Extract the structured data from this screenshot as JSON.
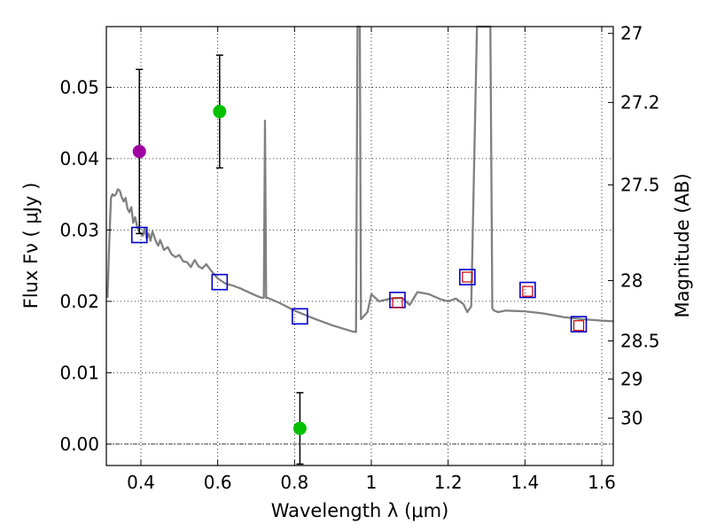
{
  "chart_data": {
    "type": "scatter",
    "title": "",
    "xlabel": "Wavelength  λ (μm)",
    "ylabel": "Flux  Fν  ( μJy )",
    "y2label": "Magnitude (AB)",
    "xlim": [
      0.31,
      1.63
    ],
    "ylim": [
      -0.003,
      0.0585
    ],
    "grid": true,
    "legend": "none",
    "x_ticks": [
      "0.4",
      "0.6",
      "0.8",
      "1",
      "1.2",
      "1.4",
      "1.6"
    ],
    "y_ticks": [
      "0.00",
      "0.01",
      "0.02",
      "0.03",
      "0.04",
      "0.05"
    ],
    "y2_ticks": [
      "27",
      "27.2",
      "27.5",
      "28",
      "28.5",
      "29",
      "30"
    ],
    "colors": {
      "model": "#808080",
      "observed_green": "#00c000",
      "observed_purple": "#a000a0",
      "synthetic_box": "#0000cc",
      "inner_box": "#cc0000",
      "errorbar": "#000000"
    },
    "series": [
      {
        "kind": "line",
        "x": [
          0.313,
          0.318,
          0.322,
          0.326,
          0.33,
          0.335,
          0.34,
          0.345,
          0.35,
          0.355,
          0.36,
          0.365,
          0.37,
          0.375,
          0.38,
          0.385,
          0.39,
          0.395,
          0.4,
          0.405,
          0.41,
          0.415,
          0.42,
          0.425,
          0.43,
          0.435,
          0.44,
          0.445,
          0.45,
          0.46,
          0.47,
          0.48,
          0.49,
          0.5,
          0.51,
          0.52,
          0.53,
          0.54,
          0.55,
          0.56,
          0.57,
          0.58,
          0.6,
          0.62,
          0.64,
          0.66,
          0.68,
          0.7,
          0.715,
          0.72,
          0.723,
          0.726,
          0.73,
          0.76,
          0.8,
          0.85,
          0.9,
          0.95,
          0.96,
          0.964,
          0.967,
          0.97,
          0.973,
          0.978,
          0.99,
          1.0,
          1.02,
          1.05,
          1.08,
          1.1,
          1.12,
          1.15,
          1.18,
          1.2,
          1.22,
          1.24,
          1.25,
          1.26,
          1.275,
          1.28,
          1.285,
          1.3,
          1.31,
          1.315,
          1.32,
          1.33,
          1.35,
          1.4,
          1.45,
          1.5,
          1.55,
          1.6,
          1.63
        ],
        "y": [
          0.0205,
          0.029,
          0.0345,
          0.035,
          0.0348,
          0.035,
          0.0357,
          0.0355,
          0.0346,
          0.034,
          0.0345,
          0.033,
          0.0325,
          0.0332,
          0.031,
          0.0318,
          0.0305,
          0.0298,
          0.0295,
          0.0292,
          0.0303,
          0.0288,
          0.0295,
          0.0285,
          0.0298,
          0.029,
          0.0283,
          0.0278,
          0.0286,
          0.0272,
          0.0276,
          0.0266,
          0.0262,
          0.0265,
          0.0256,
          0.0255,
          0.0248,
          0.0258,
          0.0249,
          0.0246,
          0.0252,
          0.0245,
          0.0232,
          0.0225,
          0.0222,
          0.0218,
          0.0213,
          0.0208,
          0.0205,
          0.0205,
          0.0453,
          0.0205,
          0.0205,
          0.0198,
          0.0187,
          0.0176,
          0.0166,
          0.0158,
          0.0157,
          0.0585,
          0.0585,
          0.0585,
          0.0175,
          0.0178,
          0.0185,
          0.021,
          0.02,
          0.0204,
          0.0205,
          0.0195,
          0.0213,
          0.021,
          0.0203,
          0.02,
          0.0204,
          0.0196,
          0.0185,
          0.0193,
          0.0585,
          0.0585,
          0.0585,
          0.0585,
          0.0585,
          0.019,
          0.0187,
          0.0185,
          0.0187,
          0.0186,
          0.0183,
          0.0178,
          0.0175,
          0.0173,
          0.0172
        ]
      },
      {
        "kind": "points",
        "shape": "circle",
        "color": "observed_green",
        "points": [
          {
            "x": 0.605,
            "y": 0.0466,
            "yerr": 0.0079
          },
          {
            "x": 0.814,
            "y": 0.0022,
            "yerr": 0.005
          }
        ]
      },
      {
        "kind": "points",
        "shape": "circle",
        "color": "observed_purple",
        "points": [
          {
            "x": 0.396,
            "y": 0.041,
            "yerr": 0.0115
          }
        ]
      },
      {
        "kind": "points",
        "shape": "square",
        "color": "synthetic_box",
        "points": [
          {
            "x": 0.396,
            "y": 0.0293
          },
          {
            "x": 0.605,
            "y": 0.0227
          },
          {
            "x": 0.814,
            "y": 0.0179
          },
          {
            "x": 1.068,
            "y": 0.0202
          },
          {
            "x": 1.25,
            "y": 0.0234
          },
          {
            "x": 1.407,
            "y": 0.0216
          },
          {
            "x": 1.54,
            "y": 0.0168
          }
        ]
      },
      {
        "kind": "points",
        "shape": "square",
        "color": "inner_box",
        "points": [
          {
            "x": 1.068,
            "y": 0.0198
          },
          {
            "x": 1.25,
            "y": 0.0234
          },
          {
            "x": 1.407,
            "y": 0.0214
          },
          {
            "x": 1.54,
            "y": 0.0166
          }
        ]
      }
    ]
  }
}
